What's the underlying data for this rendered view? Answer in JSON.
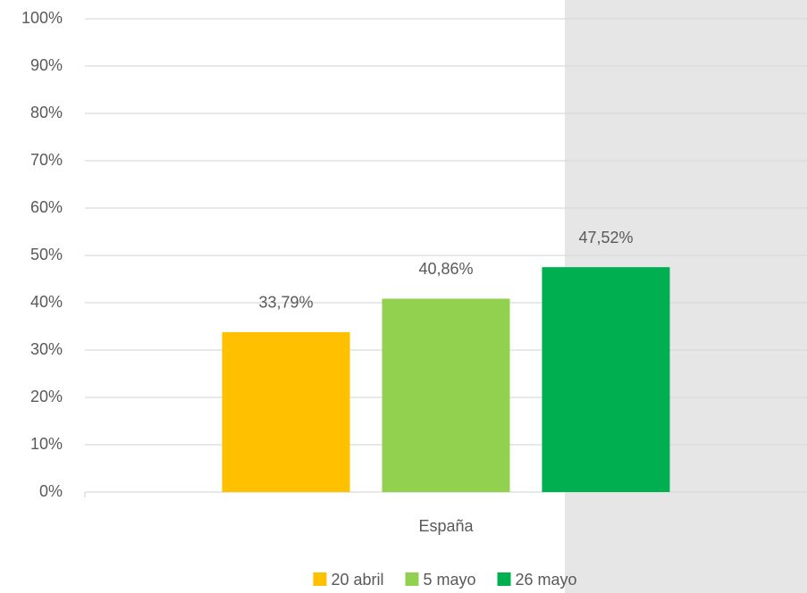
{
  "chart_data": {
    "type": "bar",
    "categories": [
      "España"
    ],
    "series": [
      {
        "name": "20 abril",
        "color": "#ffc000",
        "values": [
          33.79
        ],
        "value_labels": [
          "33,79%"
        ]
      },
      {
        "name": "5 mayo",
        "color": "#92d050",
        "values": [
          40.86
        ],
        "value_labels": [
          "40,86%"
        ]
      },
      {
        "name": "26 mayo",
        "color": "#00b050",
        "values": [
          47.52
        ],
        "value_labels": [
          "47,52%"
        ]
      }
    ],
    "ylim": [
      0,
      100
    ],
    "yticks": [
      {
        "value": 0,
        "label": "0%"
      },
      {
        "value": 10,
        "label": "10%"
      },
      {
        "value": 20,
        "label": "20%"
      },
      {
        "value": 30,
        "label": "30%"
      },
      {
        "value": 40,
        "label": "40%"
      },
      {
        "value": 50,
        "label": "50%"
      },
      {
        "value": 60,
        "label": "60%"
      },
      {
        "value": 70,
        "label": "70%"
      },
      {
        "value": 80,
        "label": "80%"
      },
      {
        "value": 90,
        "label": "90%"
      },
      {
        "value": 100,
        "label": "100%"
      }
    ],
    "grid": true,
    "legend": "bottom"
  }
}
